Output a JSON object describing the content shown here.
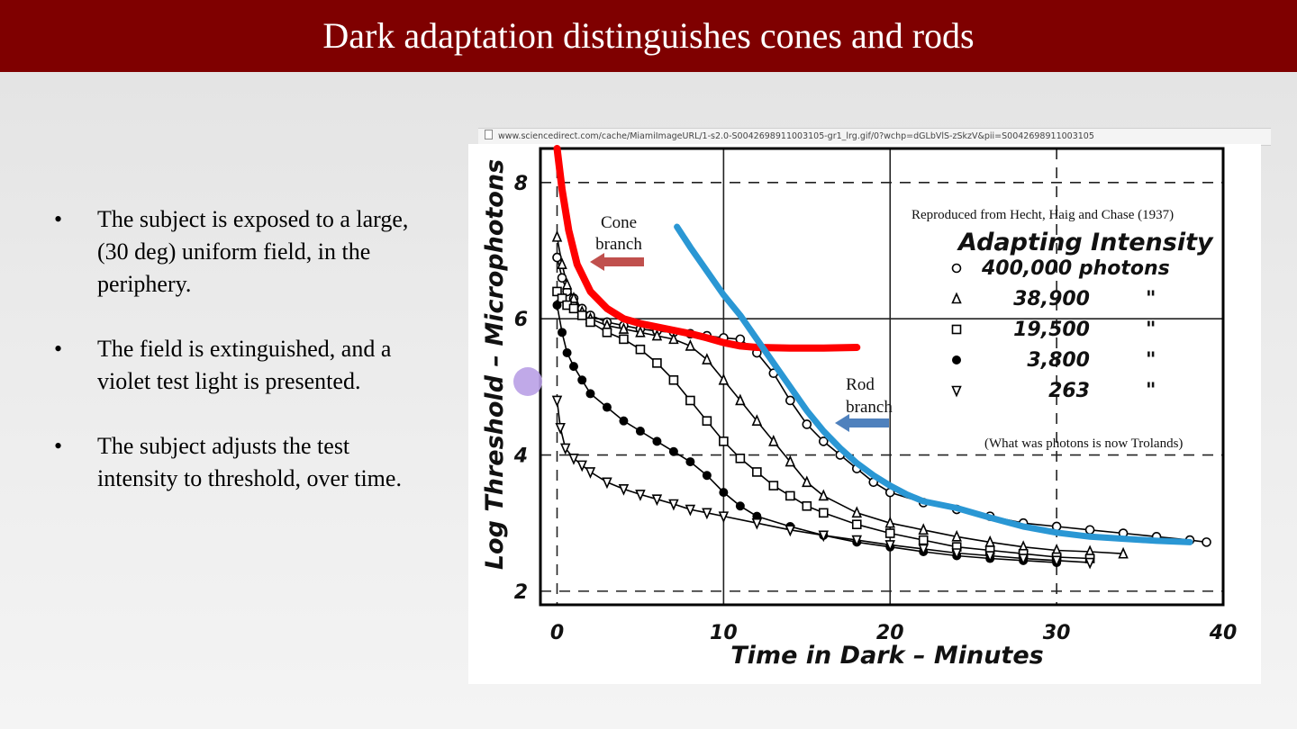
{
  "slide": {
    "title": "Dark adaptation distinguishes cones and rods",
    "bullets": [
      "The subject is exposed to a large, (30 deg) uniform field, in the periphery.",
      "The field is extinguished, and a violet test light is presented.",
      "The subject adjusts the test intensity to threshold, over time."
    ],
    "bullet_symbol": "•"
  },
  "browser": {
    "url": "www.sciencedirect.com/cache/MiamiImageURL/1-s2.0-S0042698911003105-gr1_lrg.gif/0?wchp=dGLbVlS-zSkzV&pii=S0042698911003105"
  },
  "chart_data": {
    "type": "scatter",
    "xlabel": "Time in Dark – Minutes",
    "ylabel": "Log Threshold – Microphotons",
    "xlim": [
      -1,
      40
    ],
    "ylim": [
      1.8,
      8.5
    ],
    "x_ticks": [
      0,
      10,
      20,
      30,
      40
    ],
    "y_ticks": [
      2,
      4,
      6,
      8
    ],
    "grid": true,
    "source_note": "Reproduced from Hecht, Haig and Chase (1937)",
    "footnote": "(What was photons is now Trolands)",
    "legend": {
      "title": "Adapting Intensity",
      "position": "top-right",
      "entries": [
        {
          "marker": "circle-open",
          "label": "400,000 photons"
        },
        {
          "marker": "triangle-up",
          "label": "38,900",
          "ditto": "\""
        },
        {
          "marker": "square-open",
          "label": "19,500",
          "ditto": "\""
        },
        {
          "marker": "circle-filled",
          "label": "3,800",
          "ditto": "\""
        },
        {
          "marker": "triangle-down",
          "label": "263",
          "ditto": "\""
        }
      ]
    },
    "series": [
      {
        "marker": "circle-open",
        "x": [
          0,
          0.3,
          0.6,
          1,
          1.5,
          2,
          3,
          4,
          5,
          6,
          7,
          8,
          9,
          10,
          11,
          12,
          13,
          14,
          15,
          16,
          17,
          18,
          19,
          20,
          22,
          24,
          26,
          28,
          30,
          32,
          34,
          36,
          38,
          39
        ],
        "y": [
          6.9,
          6.6,
          6.4,
          6.3,
          6.15,
          6.05,
          5.95,
          5.9,
          5.85,
          5.82,
          5.8,
          5.78,
          5.75,
          5.72,
          5.7,
          5.5,
          5.2,
          4.8,
          4.45,
          4.2,
          4.0,
          3.8,
          3.6,
          3.45,
          3.3,
          3.2,
          3.1,
          3.0,
          2.95,
          2.9,
          2.85,
          2.8,
          2.75,
          2.72
        ]
      },
      {
        "marker": "triangle-up",
        "x": [
          0,
          0.3,
          0.6,
          1,
          1.5,
          2,
          3,
          4,
          5,
          6,
          7,
          8,
          9,
          10,
          11,
          12,
          13,
          14,
          15,
          16,
          18,
          20,
          22,
          24,
          26,
          28,
          30,
          32,
          34
        ],
        "y": [
          7.2,
          6.8,
          6.5,
          6.3,
          6.1,
          6.0,
          5.9,
          5.85,
          5.8,
          5.75,
          5.7,
          5.6,
          5.4,
          5.1,
          4.8,
          4.5,
          4.2,
          3.9,
          3.6,
          3.4,
          3.15,
          3.0,
          2.9,
          2.8,
          2.72,
          2.65,
          2.6,
          2.58,
          2.55
        ]
      },
      {
        "marker": "square-open",
        "x": [
          0,
          0.3,
          0.6,
          1,
          1.5,
          2,
          3,
          4,
          5,
          6,
          7,
          8,
          9,
          10,
          11,
          12,
          13,
          14,
          15,
          16,
          18,
          20,
          22,
          24,
          26,
          28,
          30,
          32
        ],
        "y": [
          6.4,
          6.3,
          6.2,
          6.15,
          6.05,
          5.95,
          5.8,
          5.7,
          5.55,
          5.35,
          5.1,
          4.8,
          4.5,
          4.2,
          3.95,
          3.75,
          3.55,
          3.4,
          3.25,
          3.15,
          2.98,
          2.85,
          2.75,
          2.65,
          2.6,
          2.55,
          2.5,
          2.48
        ]
      },
      {
        "marker": "circle-filled",
        "x": [
          0,
          0.3,
          0.6,
          1,
          1.5,
          2,
          3,
          4,
          5,
          6,
          7,
          8,
          9,
          10,
          11,
          12,
          14,
          16,
          18,
          20,
          22,
          24,
          26,
          28,
          30
        ],
        "y": [
          6.2,
          5.8,
          5.5,
          5.3,
          5.1,
          4.9,
          4.7,
          4.5,
          4.35,
          4.2,
          4.05,
          3.9,
          3.7,
          3.45,
          3.25,
          3.1,
          2.95,
          2.82,
          2.72,
          2.65,
          2.58,
          2.52,
          2.48,
          2.45,
          2.42
        ]
      },
      {
        "marker": "triangle-down",
        "x": [
          0,
          0.2,
          0.5,
          1,
          1.5,
          2,
          3,
          4,
          5,
          6,
          7,
          8,
          9,
          10,
          12,
          14,
          16,
          18,
          20,
          22,
          24,
          26,
          28,
          30,
          32
        ],
        "y": [
          4.8,
          4.4,
          4.1,
          3.95,
          3.85,
          3.75,
          3.6,
          3.5,
          3.42,
          3.35,
          3.28,
          3.2,
          3.15,
          3.1,
          3.0,
          2.9,
          2.82,
          2.75,
          2.68,
          2.62,
          2.56,
          2.52,
          2.48,
          2.45,
          2.42
        ]
      }
    ],
    "annotations": [
      {
        "label": "Cone branch",
        "lines": [
          "Cone",
          "branch"
        ],
        "color": "#ff0000",
        "arrow_color": "#c0504d",
        "curve": {
          "x": [
            0,
            0.3,
            0.7,
            1.2,
            2,
            3,
            4,
            5,
            6,
            7,
            8,
            9,
            10,
            11,
            12,
            14,
            16,
            18
          ],
          "y": [
            8.5,
            7.9,
            7.3,
            6.8,
            6.4,
            6.15,
            6.0,
            5.93,
            5.88,
            5.83,
            5.78,
            5.72,
            5.65,
            5.6,
            5.58,
            5.57,
            5.57,
            5.58
          ]
        }
      },
      {
        "label": "Rod branch",
        "lines": [
          "Rod",
          "branch"
        ],
        "color": "#2a97d4",
        "arrow_color": "#4f81bd",
        "curve": {
          "x": [
            7.2,
            8,
            9,
            10,
            11,
            12,
            13,
            14,
            15,
            16,
            17,
            18,
            19,
            20,
            21,
            22,
            24,
            26,
            28,
            30,
            32,
            34,
            36,
            38
          ],
          "y": [
            7.35,
            7.05,
            6.7,
            6.35,
            6.05,
            5.7,
            5.35,
            5.0,
            4.65,
            4.35,
            4.1,
            3.88,
            3.7,
            3.55,
            3.42,
            3.32,
            3.22,
            3.08,
            2.95,
            2.86,
            2.8,
            2.77,
            2.74,
            2.72
          ]
        }
      }
    ]
  }
}
